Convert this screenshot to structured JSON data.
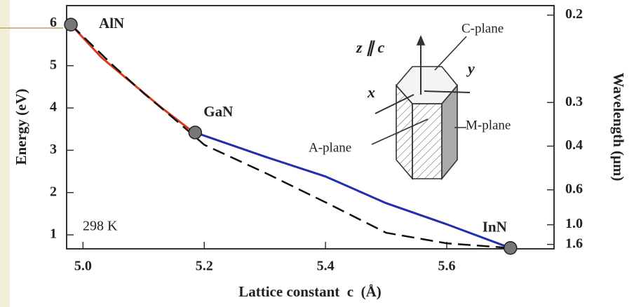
{
  "chart_data": {
    "type": "line",
    "x_label": "Lattice constant  c  (Å)",
    "y_label": "Energy (eV)",
    "y2_label": "Wavelength (μm)",
    "xlim": [
      4.973,
      5.777
    ],
    "ylim": [
      0.67,
      6.42
    ],
    "y2lim": [
      1.85,
      0.193
    ],
    "y2scale": "reciprocal",
    "xticks": [
      {
        "value": 5.0,
        "label": "5.0"
      },
      {
        "value": 5.2,
        "label": "5.2"
      },
      {
        "value": 5.4,
        "label": "5.4"
      },
      {
        "value": 5.6,
        "label": "5.6"
      }
    ],
    "yticks": [
      1,
      2,
      3,
      4,
      5,
      6
    ],
    "y2ticks": [
      0.2,
      0.3,
      0.4,
      0.6,
      {
        "value": 1.0,
        "label": "1.0"
      },
      1.6
    ],
    "series": [
      {
        "color": "#d93a1e",
        "dash": false,
        "x": [
          4.98,
          5.03,
          5.08,
          5.13,
          5.18
        ],
        "values": [
          5.97,
          5.2,
          4.6,
          4.0,
          3.45
        ]
      },
      {
        "color": "#1f2fb0",
        "dash": false,
        "x": [
          5.185,
          5.3,
          5.4,
          5.5,
          5.6,
          5.705
        ],
        "values": [
          3.42,
          2.85,
          2.38,
          1.75,
          1.25,
          0.69
        ]
      },
      {
        "color": "#111111",
        "dash": true,
        "x": [
          4.98,
          5.05,
          5.1,
          5.15,
          5.2,
          5.3,
          5.4,
          5.5,
          5.6,
          5.705
        ],
        "values": [
          5.97,
          5.0,
          4.35,
          3.75,
          3.13,
          2.47,
          1.77,
          1.05,
          0.8,
          0.69
        ]
      }
    ],
    "points": {
      "color": "#777777",
      "x": [
        4.98,
        5.185,
        5.705
      ],
      "values": [
        5.97,
        3.42,
        0.69
      ],
      "labels": [
        "AlN",
        "GaN",
        "InN"
      ]
    },
    "temperature": "298 K",
    "inset_labels": {
      "axis_z": "z ∥ c",
      "c_plane": "C-plane",
      "y": "y",
      "x": "x",
      "m_plane": "M-plane",
      "a_plane": "A-plane"
    }
  }
}
